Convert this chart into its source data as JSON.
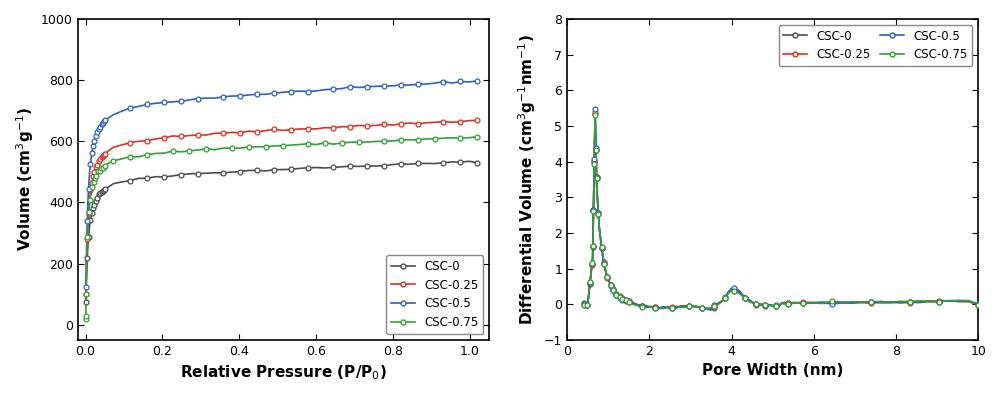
{
  "fig_width": 10.0,
  "fig_height": 3.96,
  "dpi": 100,
  "left_xlabel": "Relative Pressure (P/P$_0$)",
  "left_ylabel": "Volume (cm$^3$g$^{-1}$)",
  "left_xlim": [
    -0.02,
    1.05
  ],
  "left_ylim": [
    -50,
    1000
  ],
  "left_yticks": [
    0,
    200,
    400,
    600,
    800,
    1000
  ],
  "left_xticks": [
    0.0,
    0.2,
    0.4,
    0.6,
    0.8,
    1.0
  ],
  "right_xlabel": "Pore Width (nm)",
  "right_ylabel": "Differential Volume (cm$^3$g$^{-1}$nm$^{-1}$)",
  "right_xlim": [
    0,
    10
  ],
  "right_ylim": [
    -1,
    8
  ],
  "right_yticks": [
    -1,
    0,
    1,
    2,
    3,
    4,
    5,
    6,
    7,
    8
  ],
  "right_xticks": [
    0,
    2,
    4,
    6,
    8,
    10
  ],
  "series_names": [
    "CSC-0",
    "CSC-0.25",
    "CSC-0.5",
    "CSC-0.75"
  ],
  "series_colors": [
    "#4d4d4d",
    "#e03020",
    "#3060c0",
    "#30a030"
  ],
  "marker": "o",
  "marker_size": 3.5,
  "line_width": 1.2,
  "bg_color": "#ffffff",
  "spine_color": "#000000",
  "label_fontsize": 11,
  "tick_fontsize": 9,
  "legend_fontsize": 8.5
}
